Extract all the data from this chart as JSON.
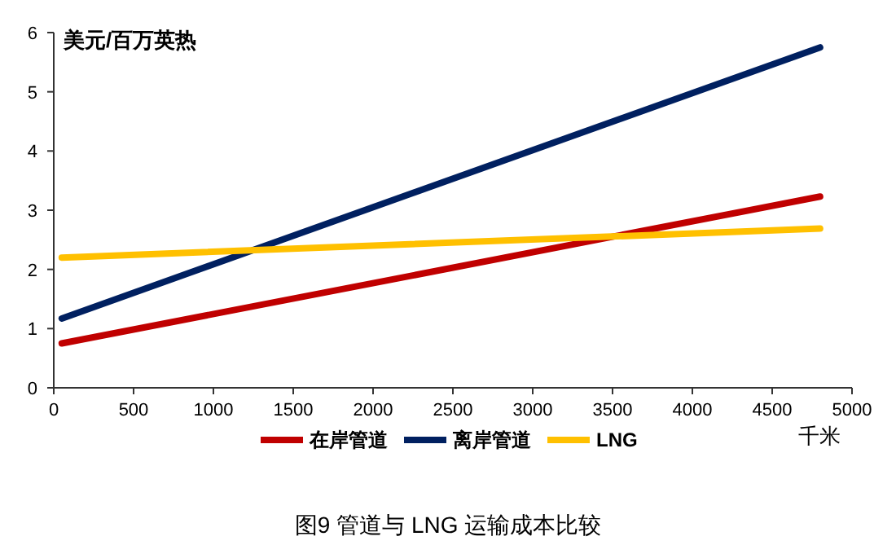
{
  "chart_data": {
    "type": "line",
    "title": "图9 管道与 LNG 运输成本比较",
    "ylabel": "美元/百万英热",
    "xlabel": "千米",
    "xlim": [
      0,
      5000
    ],
    "xticks": [
      0,
      500,
      1000,
      1500,
      2000,
      2500,
      3000,
      3500,
      4000,
      4500,
      5000
    ],
    "ylim": [
      0,
      6
    ],
    "yticks": [
      0,
      1,
      2,
      3,
      4,
      5,
      6
    ],
    "grid": false,
    "legend": "bottom",
    "marker": "none",
    "line_style": "solid",
    "x": [
      50,
      4800
    ],
    "series": [
      {
        "name": "在岸管道",
        "color": "#c00000",
        "values": [
          0.75,
          3.23
        ]
      },
      {
        "name": "离岸管道",
        "color": "#002060",
        "values": [
          1.17,
          5.75
        ]
      },
      {
        "name": "LNG",
        "color": "#ffc000",
        "values": [
          2.2,
          2.69
        ]
      }
    ]
  }
}
